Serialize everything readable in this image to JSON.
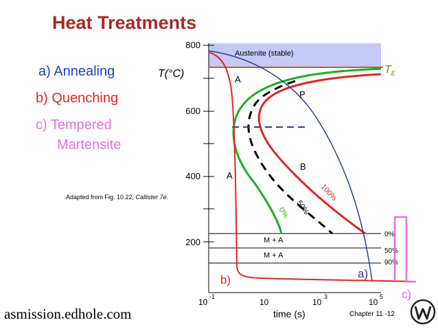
{
  "title": "Heat Treatments",
  "processes": {
    "a": "a) Annealing",
    "b": "b) Quenching",
    "c_line1": "c) Tempered",
    "c_line2": "Martensite"
  },
  "source": {
    "prefix": "Adapted from Fig. 10.22, ",
    "book": "Callister 7e."
  },
  "website": "asmission.edhole.com",
  "chapter": "Chapter 11 -12",
  "diagram": {
    "ylabel": "T(°C)",
    "xlabel": "time (s)",
    "yticks": [
      "800",
      "600",
      "400",
      "200"
    ],
    "xticks": {
      "t1_base": "10",
      "t1_exp": "-1",
      "t2": "10",
      "t3_base": "10",
      "t3_exp": "3",
      "t4_base": "10",
      "t4_exp": "5"
    },
    "austenite": "Austenite (stable)",
    "te_base": "T",
    "te_sub": "E",
    "regions": {
      "a_upper": "A",
      "a_lower": "A",
      "p": "P",
      "b": "B"
    },
    "curves": {
      "c100": "100%",
      "c50": "50%",
      "c0": "0%"
    },
    "ms_rows": [
      "M + A",
      "M + A"
    ],
    "percent_labels": [
      "0%",
      "50%",
      "90%"
    ],
    "path_labels": {
      "a": "a)",
      "b": "b)",
      "c": "c)"
    },
    "colors": {
      "annealing": "#2b3aa0",
      "quenching": "#e0261d",
      "tempered": "#e070e0",
      "start_curve": "#1cb01c",
      "mid_curve": "#000000",
      "finish_curve": "#e0261d",
      "te_line": "#b5651d",
      "austenite_fill": "#c6c8f5",
      "title": "#a52a2a"
    }
  }
}
